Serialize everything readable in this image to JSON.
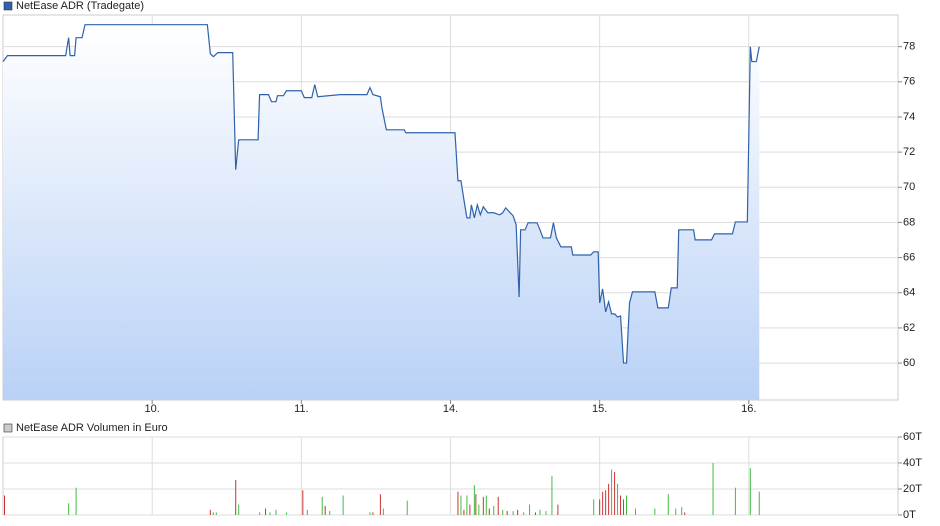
{
  "chart_data": [
    {
      "type": "line",
      "series": [
        {
          "name": "NetEase ADR (Tradegate)",
          "color": "#2f62aa",
          "x": [
            -1.0,
            -0.97,
            -0.58,
            -0.56,
            -0.55,
            -0.52,
            -0.51,
            -0.47,
            -0.45,
            0.37,
            0.39,
            0.41,
            0.44,
            0.54,
            0.56,
            0.58,
            0.71,
            0.72,
            0.78,
            0.8,
            0.83,
            0.84,
            0.88,
            0.9,
            1.0,
            1.02,
            1.07,
            1.09,
            1.11,
            1.26,
            1.44,
            1.46,
            1.48,
            1.53,
            1.54,
            1.57,
            1.69,
            1.7,
            2.03,
            2.05,
            2.07,
            2.09,
            2.11,
            2.13,
            2.14,
            2.16,
            2.18,
            2.2,
            2.22,
            2.25,
            2.29,
            2.33,
            2.35,
            2.37,
            2.4,
            2.42,
            2.44,
            2.46,
            2.47,
            2.5,
            2.52,
            2.58,
            2.6,
            2.62,
            2.67,
            2.69,
            2.71,
            2.74,
            2.81,
            2.82,
            2.94,
            2.96,
            2.99,
            3.0,
            3.02,
            3.04,
            3.06,
            3.08,
            3.1,
            3.12,
            3.14,
            3.16,
            3.18,
            3.2,
            3.22,
            3.37,
            3.39,
            3.46,
            3.48,
            3.52,
            3.53,
            3.63,
            3.64,
            3.75,
            3.77,
            3.89,
            3.91,
            3.99,
            4.01,
            4.02,
            4.05,
            4.07
          ],
          "values": [
            77.15,
            77.49,
            77.49,
            78.51,
            77.49,
            77.49,
            78.51,
            78.51,
            79.25,
            79.25,
            77.6,
            77.43,
            77.66,
            77.66,
            71.0,
            72.7,
            72.7,
            75.27,
            75.27,
            74.87,
            74.87,
            75.21,
            75.21,
            75.49,
            75.49,
            75.1,
            75.1,
            75.84,
            75.15,
            75.27,
            75.27,
            75.67,
            75.27,
            75.15,
            74.53,
            73.27,
            73.27,
            73.1,
            73.1,
            70.37,
            70.37,
            69.29,
            68.26,
            68.26,
            69.0,
            68.26,
            69.0,
            68.43,
            68.89,
            68.55,
            68.55,
            68.43,
            68.55,
            68.83,
            68.55,
            68.38,
            67.86,
            63.76,
            67.58,
            67.58,
            67.98,
            67.98,
            67.58,
            67.12,
            67.12,
            67.98,
            67.12,
            66.61,
            66.61,
            66.15,
            66.15,
            66.33,
            66.33,
            63.42,
            64.22,
            62.91,
            63.48,
            62.8,
            62.8,
            62.62,
            62.68,
            60.0,
            60.0,
            63.42,
            64.05,
            64.05,
            63.14,
            63.14,
            64.28,
            64.28,
            67.58,
            67.58,
            67.01,
            67.01,
            67.35,
            67.35,
            68.03,
            68.03,
            78.0,
            77.15,
            77.15,
            78.0
          ]
        }
      ],
      "xlim": [
        -1,
        5
      ],
      "xticks": [
        {
          "value": 0,
          "label": "10."
        },
        {
          "value": 1,
          "label": "11."
        },
        {
          "value": 2,
          "label": "14."
        },
        {
          "value": 3,
          "label": "15."
        },
        {
          "value": 4,
          "label": "16."
        }
      ],
      "ylim": [
        57.9,
        79.8
      ],
      "yticks": [
        60,
        62,
        64,
        66,
        68,
        70,
        72,
        74,
        76,
        78
      ],
      "grid": true,
      "fill": true
    },
    {
      "type": "bar",
      "series": [
        {
          "name": "NetEase ADR Volumen in Euro",
          "color": "#cccccc",
          "x": [
            -0.99,
            -0.56,
            -0.51,
            0.39,
            0.41,
            0.43,
            0.56,
            0.58,
            0.72,
            0.76,
            0.79,
            0.83,
            0.9,
            1.01,
            1.04,
            1.14,
            1.16,
            1.19,
            1.28,
            1.46,
            1.48,
            1.53,
            1.55,
            1.71,
            2.05,
            2.07,
            2.09,
            2.11,
            2.13,
            2.16,
            2.17,
            2.19,
            2.22,
            2.24,
            2.26,
            2.29,
            2.32,
            2.35,
            2.38,
            2.42,
            2.45,
            2.49,
            2.53,
            2.57,
            2.6,
            2.64,
            2.68,
            2.72,
            2.96,
            3.0,
            3.02,
            3.04,
            3.06,
            3.08,
            3.1,
            3.12,
            3.14,
            3.16,
            3.18,
            3.24,
            3.37,
            3.46,
            3.51,
            3.55,
            3.57,
            3.76,
            3.91,
            4.01,
            4.07
          ],
          "values": [
            15,
            9,
            21,
            4,
            2,
            2,
            27,
            8,
            2,
            5,
            2,
            4,
            2,
            19,
            4,
            14,
            7,
            3,
            15,
            2,
            2,
            16,
            5,
            11,
            18,
            15,
            4,
            15,
            8,
            23,
            16,
            8,
            14,
            15,
            5,
            7,
            14,
            4,
            3,
            3,
            4,
            2,
            8,
            2,
            4,
            3,
            30,
            8,
            12,
            12,
            18,
            19,
            24,
            35,
            33,
            24,
            15,
            12,
            15,
            5,
            5,
            16,
            5,
            6,
            2,
            40,
            21,
            36,
            18
          ],
          "colors": [
            "#cc3333",
            "#44bb44",
            "#44bb44",
            "#cc3333",
            "#44bb44",
            "#44bb44",
            "#cc3333",
            "#44bb44",
            "#44bb44",
            "#cc3333",
            "#44bb44",
            "#44bb44",
            "#44bb44",
            "#cc3333",
            "#44bb44",
            "#44bb44",
            "#cc3333",
            "#44bb44",
            "#44bb44",
            "#44bb44",
            "#cc3333",
            "#cc3333",
            "#44bb44",
            "#44bb44",
            "#cc3333",
            "#44bb44",
            "#cc3333",
            "#44bb44",
            "#cc3333",
            "#44bb44",
            "#cc3333",
            "#44bb44",
            "#cc3333",
            "#44bb44",
            "#cc3333",
            "#44bb44",
            "#cc3333",
            "#44bb44",
            "#cc3333",
            "#44bb44",
            "#cc3333",
            "#44bb44",
            "#44bb44",
            "#cc3333",
            "#44bb44",
            "#44bb44",
            "#44bb44",
            "#cc3333",
            "#44bb44",
            "#cc3333",
            "#cc3333",
            "#cc3333",
            "#cc3333",
            "#44bb44",
            "#cc3333",
            "#44bb44",
            "#cc3333",
            "#cc3333",
            "#44bb44",
            "#44bb44",
            "#44bb44",
            "#44bb44",
            "#44bb44",
            "#44bb44",
            "#cc3333",
            "#44bb44",
            "#44bb44",
            "#44bb44",
            "#44bb44"
          ]
        }
      ],
      "xlim": [
        -1,
        5
      ],
      "ylim": [
        0,
        60
      ],
      "yticks": [
        {
          "value": 0,
          "label": "0T"
        },
        {
          "value": 20,
          "label": "20T"
        },
        {
          "value": 40,
          "label": "40T"
        },
        {
          "value": 60,
          "label": "60T"
        }
      ],
      "grid": true
    }
  ]
}
